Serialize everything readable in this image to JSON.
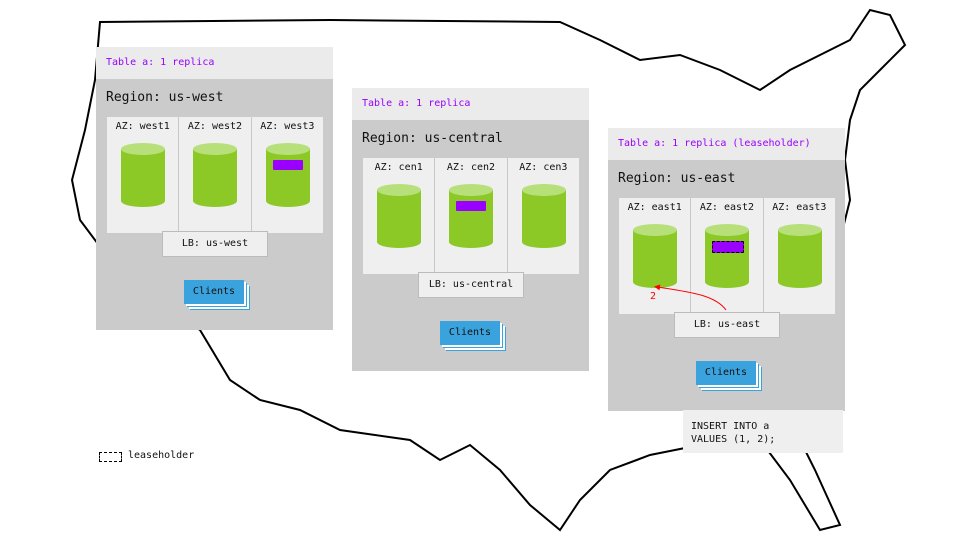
{
  "colors": {
    "replica": "#9900ff",
    "node": "#8cc926",
    "node_top": "#b8e07a",
    "clients": "#3aa3dd",
    "region_bg": "#cbcbcb",
    "panel_bg": "#ebebeb",
    "arrow": "#ff0000"
  },
  "regions": [
    {
      "header": "Table a: 1 replica",
      "title": "Region: us-west",
      "azs": [
        "AZ: west1",
        "AZ: west2",
        "AZ: west3"
      ],
      "replica_az": 2,
      "leaseholder": false,
      "lb": "LB: us-west",
      "clients": "Clients"
    },
    {
      "header": "Table a: 1 replica",
      "title": "Region: us-central",
      "azs": [
        "AZ: cen1",
        "AZ: cen2",
        "AZ: cen3"
      ],
      "replica_az": 1,
      "leaseholder": false,
      "lb": "LB: us-central",
      "clients": "Clients"
    },
    {
      "header": "Table a: 1 replica (leaseholder)",
      "title": "Region: us-east",
      "azs": [
        "AZ: east1",
        "AZ: east2",
        "AZ: east3"
      ],
      "replica_az": 1,
      "leaseholder": true,
      "lb": "LB: us-east",
      "clients": "Clients"
    }
  ],
  "arrow_label": "2",
  "sql": "INSERT INTO a\nVALUES (1, 2);",
  "legend": {
    "label": "leaseholder"
  }
}
